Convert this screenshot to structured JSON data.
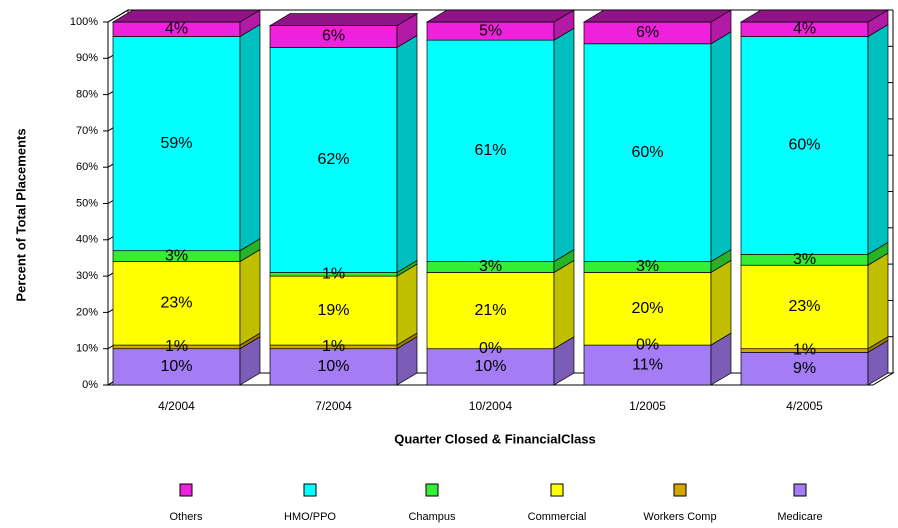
{
  "chart_data": {
    "type": "bar3d_stacked",
    "ylabel": "Percent of Total Placements",
    "xlabel": "Quarter Closed & FinancialClass",
    "categories": [
      "4/2004",
      "7/2004",
      "10/2004",
      "1/2005",
      "4/2005"
    ],
    "series": [
      {
        "name": "Medicare",
        "color": "#a47cf4",
        "values": [
          10,
          10,
          10,
          11,
          9
        ],
        "value_labels": [
          "10%",
          "10%",
          "10%",
          "11%",
          "9%"
        ]
      },
      {
        "name": "Workers Comp",
        "color": "#d4a800",
        "values": [
          1,
          1,
          0,
          0,
          1
        ],
        "value_labels": [
          "1%",
          "1%",
          "0%",
          "0%",
          "1%"
        ]
      },
      {
        "name": "Commercial",
        "color": "#ffff00",
        "values": [
          23,
          19,
          21,
          20,
          23
        ],
        "value_labels": [
          "23%",
          "19%",
          "21%",
          "20%",
          "23%"
        ]
      },
      {
        "name": "Champus",
        "color": "#33ee33",
        "values": [
          3,
          1,
          3,
          3,
          3
        ],
        "value_labels": [
          "3%",
          "1%",
          "3%",
          "3%",
          "3%"
        ]
      },
      {
        "name": "HMO/PPO",
        "color": "#00ffff",
        "values": [
          59,
          62,
          61,
          60,
          60
        ],
        "value_labels": [
          "59%",
          "62%",
          "61%",
          "60%",
          "60%"
        ]
      },
      {
        "name": "Others",
        "color": "#ee22dd",
        "values": [
          4,
          6,
          5,
          6,
          4
        ],
        "value_labels": [
          "4%",
          "6%",
          "5%",
          "6%",
          "4%"
        ]
      }
    ],
    "legend_order": [
      5,
      4,
      3,
      2,
      1,
      0
    ],
    "ylim": [
      0,
      100
    ],
    "yticks": [
      {
        "value": 0,
        "label": "0%"
      },
      {
        "value": 10,
        "label": "10%"
      },
      {
        "value": 20,
        "label": "20%"
      },
      {
        "value": 30,
        "label": "30%"
      },
      {
        "value": 40,
        "label": "40%"
      },
      {
        "value": 50,
        "label": "50%"
      },
      {
        "value": 60,
        "label": "60%"
      },
      {
        "value": 70,
        "label": "70%"
      },
      {
        "value": 80,
        "label": "80%"
      },
      {
        "value": 90,
        "label": "90%"
      },
      {
        "value": 100,
        "label": "100%"
      }
    ],
    "legend": "bottom"
  }
}
